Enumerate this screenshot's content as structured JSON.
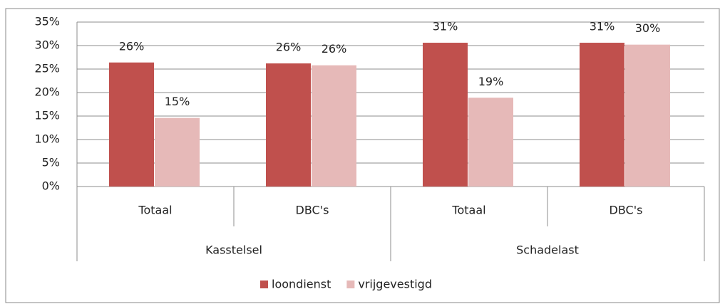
{
  "chart_data": {
    "type": "bar",
    "categories": [
      "Totaal",
      "DBC's",
      "Totaal",
      "DBC's"
    ],
    "groups": [
      "Kasstelsel",
      "Schadelast"
    ],
    "series": [
      {
        "name": "loondienst",
        "color": "#c0504d",
        "values": [
          26.4,
          26.2,
          30.6,
          30.6
        ],
        "value_labels": [
          "26%",
          "26%",
          "31%",
          "31%"
        ]
      },
      {
        "name": "vrijgevestigd",
        "color": "#e6b9b8",
        "values": [
          14.6,
          25.8,
          18.9,
          30.2
        ],
        "value_labels": [
          "15%",
          "26%",
          "19%",
          "30%"
        ]
      }
    ],
    "ylim": [
      0,
      35
    ],
    "yticks": [
      {
        "value": 0,
        "label": "0%"
      },
      {
        "value": 5,
        "label": "5%"
      },
      {
        "value": 10,
        "label": "10%"
      },
      {
        "value": 15,
        "label": "15%"
      },
      {
        "value": 20,
        "label": "20%"
      },
      {
        "value": 25,
        "label": "25%"
      },
      {
        "value": 30,
        "label": "30%"
      },
      {
        "value": 35,
        "label": "35%"
      }
    ],
    "grid": true,
    "legend": "bottom"
  }
}
